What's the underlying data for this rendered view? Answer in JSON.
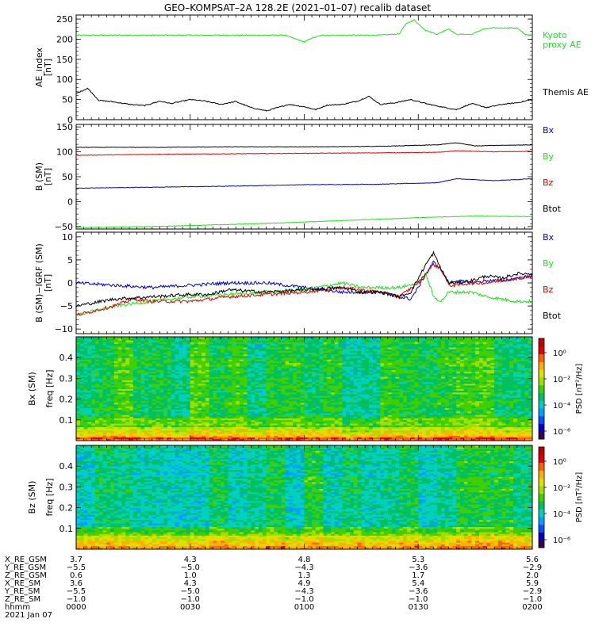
{
  "title": "GEO–KOMPSAT–2A 128.2E (2021–01–07) recalib dataset",
  "colors": {
    "green": "#1ee11e",
    "black": "#000000",
    "red": "#e00000",
    "blue": "#0000cc"
  },
  "chart_data": [
    {
      "type": "line",
      "ylabel": "AE_index [nT]",
      "ylim": [
        0,
        260
      ],
      "yticks": [
        "0",
        "50",
        "100",
        "150",
        "200",
        "250"
      ],
      "xlim": [
        0,
        120
      ],
      "series": [
        {
          "name": "Kyoto proxy AE",
          "legend_lines": [
            "Kyoto",
            "proxy AE"
          ],
          "color": "#1ee11e",
          "x": [
            0,
            55,
            57,
            60,
            62,
            65,
            80,
            85,
            86,
            87,
            89,
            90,
            92,
            95,
            97,
            98,
            100,
            104,
            107,
            110,
            113,
            116,
            118,
            120
          ],
          "y": [
            210,
            210,
            203,
            193,
            203,
            210,
            210,
            213,
            228,
            240,
            248,
            238,
            222,
            212,
            222,
            226,
            212,
            212,
            225,
            228,
            228,
            228,
            212,
            210
          ]
        },
        {
          "name": "Themis AE",
          "legend_lines": [
            "Themis AE"
          ],
          "color": "#000000",
          "x": [
            0,
            3,
            6,
            10,
            14,
            18,
            22,
            25,
            30,
            34,
            38,
            42,
            46,
            50,
            53,
            56,
            60,
            63,
            66,
            70,
            74,
            77,
            80,
            84,
            88,
            92,
            96,
            100,
            104,
            108,
            112,
            116,
            120
          ],
          "y": [
            65,
            78,
            48,
            44,
            38,
            35,
            46,
            40,
            50,
            46,
            38,
            45,
            30,
            22,
            30,
            38,
            32,
            25,
            36,
            38,
            46,
            58,
            38,
            42,
            50,
            40,
            32,
            25,
            40,
            30,
            38,
            42,
            50
          ]
        }
      ]
    },
    {
      "type": "line",
      "ylabel": "B (SM) [nT]",
      "ylim": [
        -55,
        155
      ],
      "yticks": [
        "−50",
        "0",
        "50",
        "100",
        "150"
      ],
      "xlim": [
        0,
        120
      ],
      "series": [
        {
          "name": "Bx",
          "color": "#0000cc",
          "x": [
            0,
            20,
            40,
            60,
            80,
            95,
            100,
            110,
            120
          ],
          "y": [
            27,
            29,
            31,
            34,
            35,
            38,
            46,
            42,
            46
          ]
        },
        {
          "name": "By",
          "color": "#1ee11e",
          "x": [
            0,
            20,
            40,
            60,
            80,
            95,
            105,
            120
          ],
          "y": [
            -52,
            -50,
            -46,
            -41,
            -35,
            -31,
            -29,
            -30
          ]
        },
        {
          "name": "Bz",
          "color": "#e00000",
          "x": [
            0,
            20,
            40,
            60,
            80,
            95,
            100,
            110,
            120
          ],
          "y": [
            93,
            95,
            96,
            97,
            98,
            99,
            102,
            100,
            101
          ]
        },
        {
          "name": "Btot",
          "color": "#000000",
          "x": [
            0,
            20,
            40,
            60,
            80,
            95,
            100,
            105,
            110,
            120
          ],
          "y": [
            109,
            109,
            110,
            110,
            111,
            114,
            118,
            112,
            113,
            114
          ]
        }
      ]
    },
    {
      "type": "line",
      "ylabel": "B (SM)−IGRF (SM) [nT]",
      "ylim": [
        -11,
        11
      ],
      "yticks": [
        "−10",
        "−5",
        "0",
        "5",
        "10"
      ],
      "xlim": [
        0,
        120
      ],
      "series": [
        {
          "name": "Bx",
          "color": "#0000cc",
          "x": [
            0,
            10,
            20,
            30,
            40,
            50,
            60,
            70,
            80,
            85,
            88,
            90,
            92,
            94,
            96,
            98,
            100,
            104,
            108,
            112,
            116,
            120
          ],
          "y": [
            0,
            -0.5,
            -1,
            -0.5,
            0,
            0,
            -1,
            -2,
            -2,
            -3,
            -3.5,
            -1,
            2,
            4.5,
            3,
            0,
            0.5,
            0,
            0.5,
            0.5,
            1,
            1.5
          ]
        },
        {
          "name": "By",
          "color": "#1ee11e",
          "x": [
            0,
            5,
            10,
            15,
            20,
            30,
            40,
            50,
            60,
            70,
            75,
            80,
            85,
            90,
            92,
            94,
            96,
            98,
            100,
            104,
            108,
            112,
            116,
            120
          ],
          "y": [
            -7,
            -6,
            -5,
            -4.5,
            -4,
            -3,
            -2.5,
            -2,
            -1.5,
            0,
            -1,
            -1,
            -1,
            0,
            2,
            -3,
            -4,
            -2,
            -2,
            -2,
            -3,
            -3.5,
            -4,
            -4
          ]
        },
        {
          "name": "Bz",
          "color": "#e00000",
          "x": [
            0,
            10,
            15,
            20,
            30,
            40,
            50,
            60,
            70,
            80,
            85,
            90,
            94,
            96,
            98,
            100,
            104,
            108,
            112,
            116,
            120
          ],
          "y": [
            -7,
            -5,
            -3.5,
            -4,
            -4,
            -3,
            -2.5,
            -2,
            -1,
            -2,
            -3,
            0,
            4,
            3,
            -0.5,
            -0.5,
            0,
            0,
            0.5,
            1,
            1.5
          ]
        },
        {
          "name": "Btot",
          "color": "#000000",
          "x": [
            0,
            10,
            20,
            30,
            35,
            40,
            50,
            60,
            70,
            75,
            80,
            85,
            88,
            90,
            92,
            94,
            96,
            98,
            100,
            104,
            108,
            112,
            116,
            120
          ],
          "y": [
            -5,
            -3.5,
            -3,
            -2.5,
            -2.5,
            -1.5,
            -2,
            -1.5,
            -1,
            -2,
            -2,
            -3,
            -2,
            1,
            4,
            6.5,
            3,
            0,
            0,
            0.5,
            1.5,
            1,
            2,
            2
          ]
        }
      ]
    },
    {
      "type": "heatmap",
      "ylabel": "Bx (SM) freq [Hz]",
      "ylim": [
        0,
        0.5
      ],
      "yticks": [
        "0.1",
        "0.2",
        "0.3",
        "0.4"
      ],
      "zlabel": "PSD [nT²/Hz]",
      "zticks": [
        "10⁰",
        "10⁻²",
        "10⁻⁴",
        "10⁻⁶"
      ]
    },
    {
      "type": "heatmap",
      "ylabel": "Bz (SM) freq [Hz]",
      "ylim": [
        0,
        0.5
      ],
      "yticks": [
        "0.1",
        "0.2",
        "0.3",
        "0.4"
      ],
      "zlabel": "PSD [nT²/Hz]",
      "zticks": [
        "10⁰",
        "10⁻²",
        "10⁻⁴",
        "10⁻⁶"
      ]
    }
  ],
  "ephemeris": {
    "row_labels": [
      "X_RE_GSM",
      "Y_RE_GSM",
      "Z_RE_GSM",
      "X_RE_SM",
      "Y_RE_SM",
      "Z_RE_SM",
      "hhmm",
      "2021 Jan 07"
    ],
    "columns": [
      [
        "3.7",
        "−5.5",
        "0.6",
        "3.6",
        "−5.5",
        "−1.0",
        "0000"
      ],
      [
        "4.3",
        "−5.0",
        "1.0",
        "4.3",
        "−5.0",
        "−1.0",
        "0030"
      ],
      [
        "4.8",
        "−4.3",
        "1.3",
        "4.9",
        "−4.3",
        "−1.0",
        "0100"
      ],
      [
        "5.3",
        "−3.6",
        "1.7",
        "5.4",
        "−3.6",
        "−1.0",
        "0130"
      ],
      [
        "5.6",
        "−2.9",
        "2.0",
        "5.9",
        "−2.9",
        "−1.0",
        "0200"
      ]
    ]
  }
}
